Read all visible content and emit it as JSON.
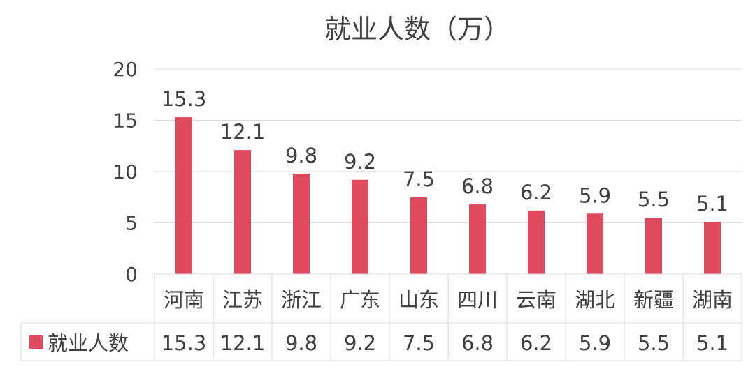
{
  "chart_data": {
    "type": "bar",
    "title": "就业人数（万）",
    "categories": [
      "河南",
      "江苏",
      "浙江",
      "广东",
      "山东",
      "四川",
      "云南",
      "湖北",
      "新疆",
      "湖南"
    ],
    "series": [
      {
        "name": "就业人数",
        "values": [
          15.3,
          12.1,
          9.8,
          9.2,
          7.5,
          6.8,
          6.2,
          5.9,
          5.5,
          5.1
        ],
        "color": "#e04a5f"
      }
    ],
    "ylim": [
      0,
      20
    ],
    "yticks": [
      "0",
      "5",
      "10",
      "15",
      "20"
    ],
    "data_labels": [
      "15.3",
      "12.1",
      "9.8",
      "9.2",
      "7.5",
      "6.8",
      "6.2",
      "5.9",
      "5.5",
      "5.1"
    ],
    "grid": true,
    "legend": "data-table",
    "colors": {
      "bar": "#e04a5f",
      "grid": "#d9d9d9",
      "text": "#404040"
    }
  }
}
